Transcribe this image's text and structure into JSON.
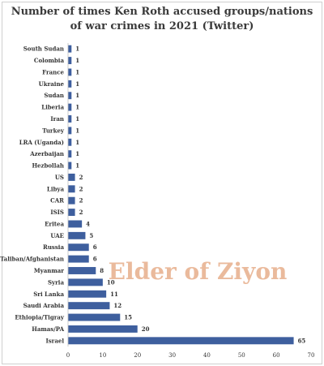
{
  "chart_data": {
    "type": "bar",
    "orientation": "horizontal",
    "title_line1": "Number of times Ken Roth accused groups/nations",
    "title_line2": "of war crimes in 2021 (Twitter)",
    "categories": [
      "South Sudan",
      "Colombia",
      "France",
      "Ukraine",
      "Sudan",
      "Liberia",
      "Iran",
      "Turkey",
      "LRA (Uganda)",
      "Azerbaijan",
      "Hezbollah",
      "US",
      "Libya",
      "CAR",
      "ISIS",
      "Eritea",
      "UAE",
      "Russia",
      "Taliban/Afghanistan",
      "Myanmar",
      "Syria",
      "Sri Lanka",
      "Saudi Arabia",
      "Ethiopia/Tigray",
      "Hamas/PA",
      "Israel"
    ],
    "values": [
      1,
      1,
      1,
      1,
      1,
      1,
      1,
      1,
      1,
      1,
      1,
      2,
      2,
      2,
      2,
      4,
      5,
      6,
      6,
      8,
      10,
      11,
      12,
      15,
      20,
      65
    ],
    "xlim": [
      0,
      70
    ],
    "xticks": [
      0,
      10,
      20,
      30,
      40,
      50,
      60,
      70
    ],
    "bar_color": "#3e5f9e",
    "grid": false,
    "legend": "none",
    "watermark": "Elder of Ziyon",
    "watermark_color": "#d9824a"
  }
}
